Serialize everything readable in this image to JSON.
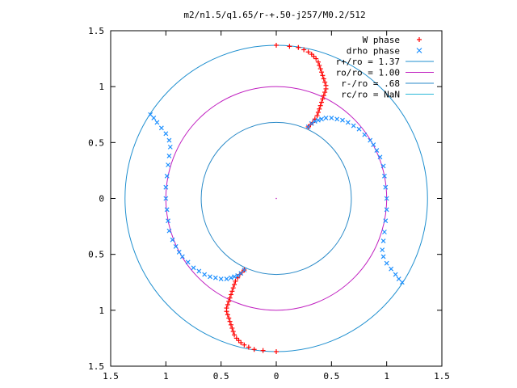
{
  "chart_data": {
    "type": "scatter",
    "title": "m2/n1.5/q1.65/r-+.50-j257/M0.2/512",
    "xlabel": "",
    "ylabel": "",
    "xlim": [
      -1.5,
      1.5
    ],
    "ylim": [
      -1.5,
      1.5
    ],
    "x_ticks": [
      -1.5,
      -1.0,
      -0.5,
      0,
      0.5,
      1.0,
      1.5
    ],
    "x_tick_labels": [
      "1.5",
      "1",
      "0.5",
      "0",
      "0.5",
      "1",
      "1.5"
    ],
    "y_ticks": [
      1.5,
      1.0,
      0.5,
      0,
      -0.5,
      -1.0,
      -1.5
    ],
    "y_tick_labels": [
      "1.5",
      "1",
      "0.5",
      "0",
      "0.5",
      "1",
      "1.5"
    ],
    "grid": false,
    "legend_position": "top-right",
    "colors": {
      "w_phase": "#ff0000",
      "drho_phase": "#1e90ff",
      "r_plus": "#1f8fcf",
      "r_o": "#c020c0",
      "r_minus": "#2a8ac8",
      "r_c": "#2ab8d8"
    },
    "series": [
      {
        "name": "W phase",
        "marker": "plus",
        "points": [
          [
            0.0,
            1.37
          ],
          [
            0.12,
            1.36
          ],
          [
            0.2,
            1.35
          ],
          [
            0.25,
            1.33
          ],
          [
            0.29,
            1.31
          ],
          [
            0.32,
            1.29
          ],
          [
            0.34,
            1.27
          ],
          [
            0.36,
            1.25
          ],
          [
            0.38,
            1.22
          ],
          [
            0.39,
            1.19
          ],
          [
            0.4,
            1.16
          ],
          [
            0.41,
            1.13
          ],
          [
            0.42,
            1.1
          ],
          [
            0.43,
            1.07
          ],
          [
            0.44,
            1.04
          ],
          [
            0.45,
            1.01
          ],
          [
            0.45,
            0.98
          ],
          [
            0.44,
            0.95
          ],
          [
            0.43,
            0.92
          ],
          [
            0.42,
            0.89
          ],
          [
            0.41,
            0.86
          ],
          [
            0.4,
            0.83
          ],
          [
            0.39,
            0.8
          ],
          [
            0.38,
            0.77
          ],
          [
            0.37,
            0.74
          ],
          [
            0.35,
            0.71
          ],
          [
            0.33,
            0.68
          ],
          [
            0.31,
            0.66
          ],
          [
            0.29,
            0.64
          ],
          [
            0.0,
            -1.37
          ],
          [
            -0.12,
            -1.36
          ],
          [
            -0.2,
            -1.35
          ],
          [
            -0.25,
            -1.33
          ],
          [
            -0.29,
            -1.31
          ],
          [
            -0.32,
            -1.29
          ],
          [
            -0.34,
            -1.27
          ],
          [
            -0.36,
            -1.25
          ],
          [
            -0.38,
            -1.22
          ],
          [
            -0.39,
            -1.19
          ],
          [
            -0.4,
            -1.16
          ],
          [
            -0.41,
            -1.13
          ],
          [
            -0.42,
            -1.1
          ],
          [
            -0.43,
            -1.07
          ],
          [
            -0.44,
            -1.04
          ],
          [
            -0.45,
            -1.01
          ],
          [
            -0.45,
            -0.98
          ],
          [
            -0.44,
            -0.95
          ],
          [
            -0.43,
            -0.92
          ],
          [
            -0.42,
            -0.89
          ],
          [
            -0.41,
            -0.86
          ],
          [
            -0.4,
            -0.83
          ],
          [
            -0.39,
            -0.8
          ],
          [
            -0.38,
            -0.77
          ],
          [
            -0.37,
            -0.74
          ],
          [
            -0.35,
            -0.71
          ],
          [
            -0.33,
            -0.68
          ],
          [
            -0.31,
            -0.66
          ],
          [
            -0.29,
            -0.64
          ]
        ]
      },
      {
        "name": "drho phase",
        "marker": "cross",
        "points": [
          [
            0.29,
            0.64
          ],
          [
            0.32,
            0.67
          ],
          [
            0.35,
            0.69
          ],
          [
            0.38,
            0.7
          ],
          [
            0.41,
            0.71
          ],
          [
            0.45,
            0.72
          ],
          [
            0.5,
            0.72
          ],
          [
            0.55,
            0.71
          ],
          [
            0.6,
            0.7
          ],
          [
            0.65,
            0.68
          ],
          [
            0.7,
            0.65
          ],
          [
            0.75,
            0.62
          ],
          [
            0.8,
            0.57
          ],
          [
            0.85,
            0.52
          ],
          [
            0.88,
            0.48
          ],
          [
            0.91,
            0.43
          ],
          [
            0.94,
            0.37
          ],
          [
            0.97,
            0.29
          ],
          [
            0.98,
            0.2
          ],
          [
            0.99,
            0.1
          ],
          [
            1.0,
            0.0
          ],
          [
            1.0,
            -0.1
          ],
          [
            0.99,
            -0.2
          ],
          [
            0.98,
            -0.3
          ],
          [
            0.97,
            -0.38
          ],
          [
            0.96,
            -0.46
          ],
          [
            0.97,
            -0.52
          ],
          [
            1.0,
            -0.58
          ],
          [
            1.04,
            -0.63
          ],
          [
            1.08,
            -0.68
          ],
          [
            1.11,
            -0.72
          ],
          [
            1.14,
            -0.75
          ],
          [
            -0.29,
            -0.64
          ],
          [
            -0.32,
            -0.67
          ],
          [
            -0.35,
            -0.69
          ],
          [
            -0.38,
            -0.7
          ],
          [
            -0.41,
            -0.71
          ],
          [
            -0.45,
            -0.72
          ],
          [
            -0.5,
            -0.72
          ],
          [
            -0.55,
            -0.71
          ],
          [
            -0.6,
            -0.7
          ],
          [
            -0.65,
            -0.68
          ],
          [
            -0.7,
            -0.65
          ],
          [
            -0.75,
            -0.62
          ],
          [
            -0.8,
            -0.57
          ],
          [
            -0.85,
            -0.52
          ],
          [
            -0.88,
            -0.48
          ],
          [
            -0.91,
            -0.43
          ],
          [
            -0.94,
            -0.37
          ],
          [
            -0.97,
            -0.29
          ],
          [
            -0.98,
            -0.2
          ],
          [
            -0.99,
            -0.1
          ],
          [
            -1.0,
            0.0
          ],
          [
            -1.0,
            0.1
          ],
          [
            -0.99,
            0.2
          ],
          [
            -0.98,
            0.3
          ],
          [
            -0.97,
            0.38
          ],
          [
            -0.96,
            0.46
          ],
          [
            -0.97,
            0.52
          ],
          [
            -1.0,
            0.58
          ],
          [
            -1.04,
            0.63
          ],
          [
            -1.08,
            0.68
          ],
          [
            -1.11,
            0.72
          ],
          [
            -1.14,
            0.75
          ]
        ]
      },
      {
        "name": "r+/ro = 1.37",
        "type": "circle",
        "radius": 1.37
      },
      {
        "name": "ro/ro = 1.00",
        "type": "circle",
        "radius": 1.0
      },
      {
        "name": "r-/ro = .68",
        "type": "circle",
        "radius": 0.68
      },
      {
        "name": "rc/ro = NaN",
        "type": "circle",
        "radius": null
      }
    ]
  }
}
